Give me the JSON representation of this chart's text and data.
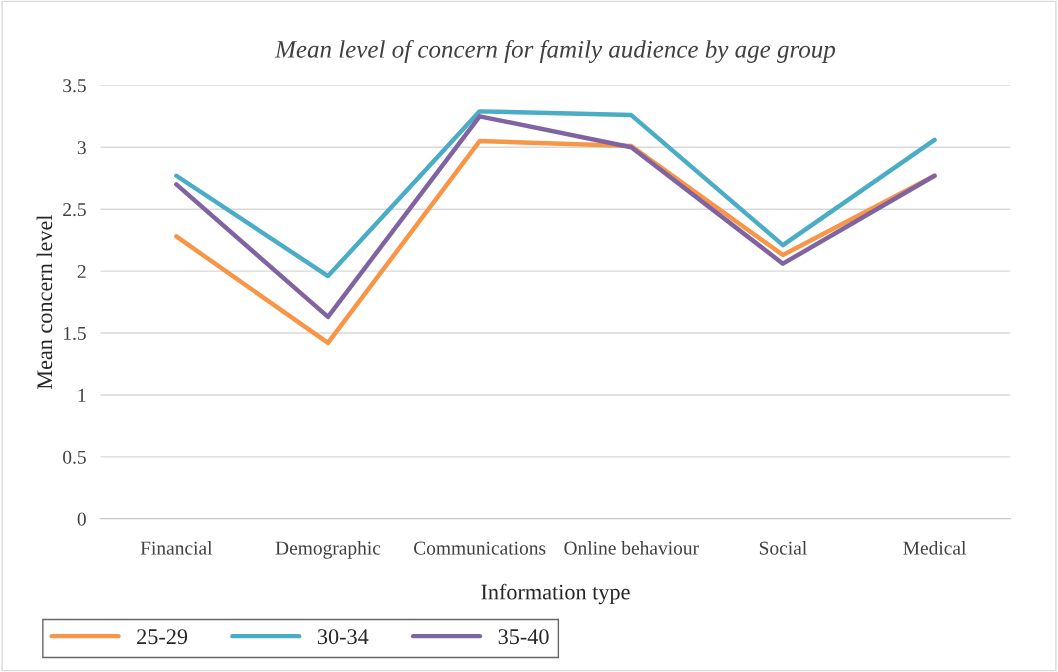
{
  "chart_data": {
    "type": "line",
    "title": "Mean level of concern for family audience by age group",
    "xlabel": "Information type",
    "ylabel": "Mean concern level",
    "categories": [
      "Financial",
      "Demographic",
      "Communications",
      "Online behaviour",
      "Social",
      "Medical"
    ],
    "series": [
      {
        "name": "25-29",
        "color": "#f79646",
        "values": [
          2.28,
          1.42,
          3.05,
          3.01,
          2.13,
          2.77
        ]
      },
      {
        "name": "30-34",
        "color": "#4bacc6",
        "values": [
          2.77,
          1.96,
          3.29,
          3.26,
          2.21,
          3.06
        ]
      },
      {
        "name": "35-40",
        "color": "#8064a2",
        "values": [
          2.7,
          1.63,
          3.25,
          3.0,
          2.06,
          2.77
        ]
      }
    ],
    "ylim": [
      0,
      3.5
    ],
    "yticks": [
      0,
      0.5,
      1,
      1.5,
      2,
      2.5,
      3,
      3.5
    ],
    "grid": "y",
    "legend": "bottom left",
    "marker": "none",
    "line_style": "solid"
  }
}
